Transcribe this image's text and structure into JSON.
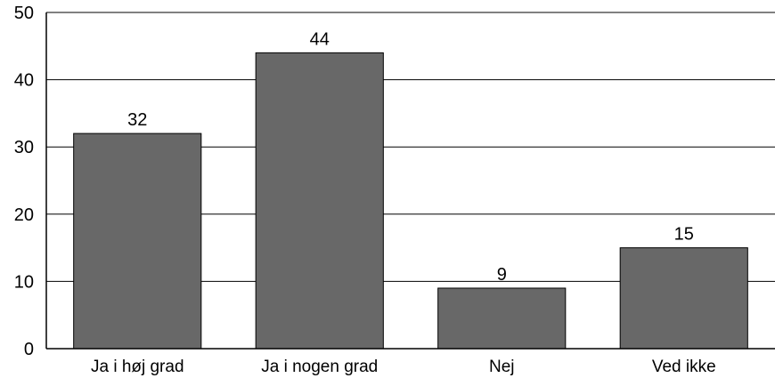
{
  "chart_data": {
    "type": "bar",
    "title": "",
    "xlabel": "",
    "ylabel": "",
    "categories": [
      "Ja i høj grad",
      "Ja i nogen grad",
      "Nej",
      "Ved ikke"
    ],
    "values": [
      32,
      44,
      9,
      15
    ],
    "data_labels": [
      "32",
      "44",
      "9",
      "15"
    ],
    "ylim": [
      0,
      50
    ],
    "yticks": [
      0,
      10,
      20,
      30,
      40,
      50
    ],
    "ytick_labels": [
      "0",
      "10",
      "20",
      "30",
      "40",
      "50"
    ],
    "grid": true,
    "bar_color": "#686868"
  }
}
